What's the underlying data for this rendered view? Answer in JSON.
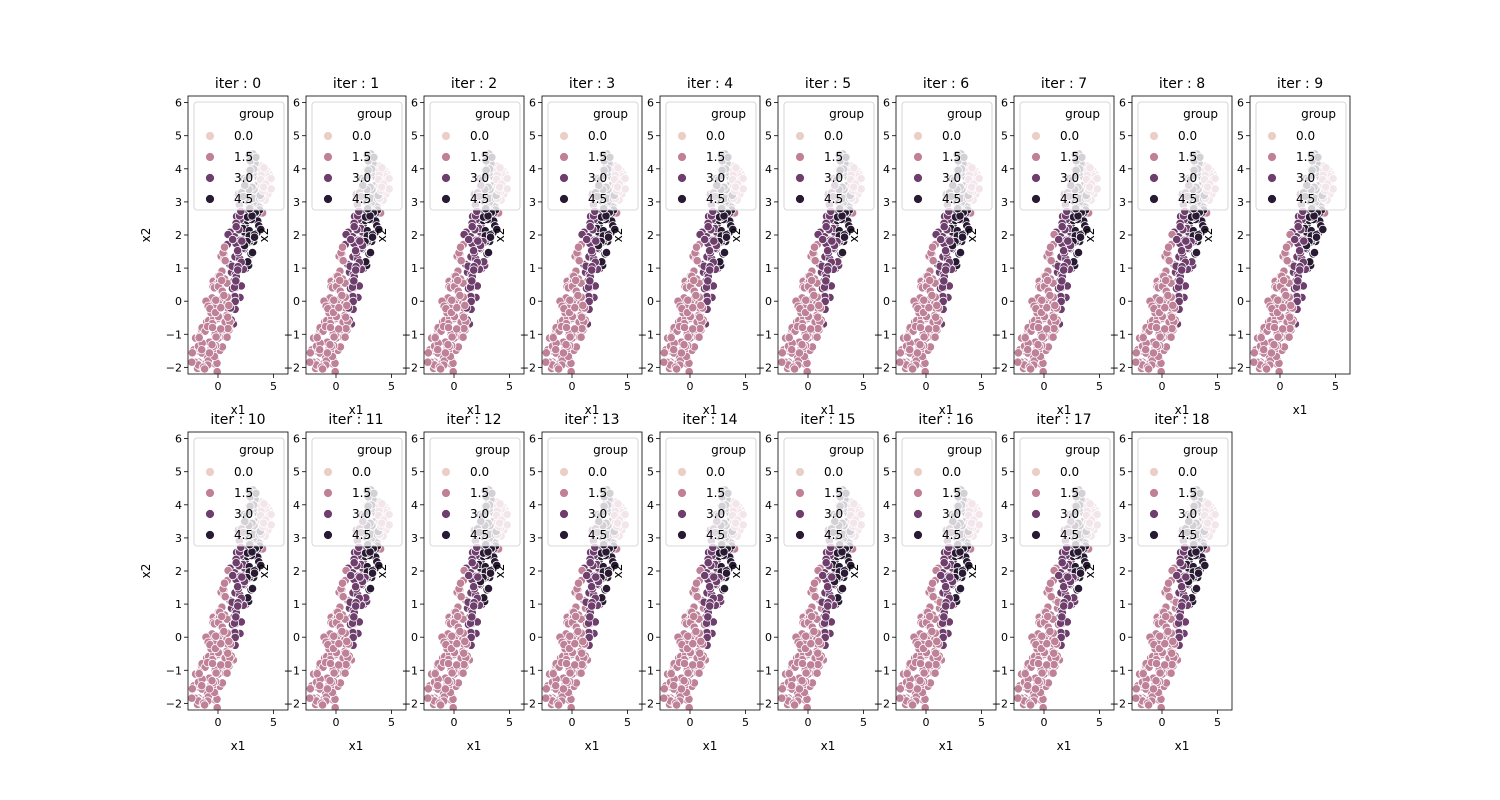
{
  "figure": {
    "xlabel": "x1",
    "ylabel": "x2",
    "legend_title": "group",
    "legend_location": "upper-right",
    "legend_entries": [
      "0.0",
      "1.5",
      "3.0",
      "4.5"
    ],
    "legend_colors": [
      "#eacfc6",
      "#bf8197",
      "#6e3e6c",
      "#281a32"
    ],
    "marker_edge_color": "#ffffff"
  },
  "chart_data": {
    "type": "scatter",
    "layout": "small-multiples",
    "rows": 2,
    "cols": 10,
    "x_ticks": [
      0,
      5
    ],
    "y_ticks": [
      -2,
      -1,
      0,
      1,
      2,
      3,
      4,
      5,
      6
    ],
    "xlim": [
      -2.7,
      6.3
    ],
    "ylim": [
      -2.2,
      6.2
    ],
    "grid": false,
    "groups": [
      "0.0",
      "1.5",
      "3.0",
      "4.5"
    ],
    "panels": [
      {
        "title": "iter : 0"
      },
      {
        "title": "iter : 1"
      },
      {
        "title": "iter : 2"
      },
      {
        "title": "iter : 3"
      },
      {
        "title": "iter : 4"
      },
      {
        "title": "iter : 5"
      },
      {
        "title": "iter : 6"
      },
      {
        "title": "iter : 7"
      },
      {
        "title": "iter : 8"
      },
      {
        "title": "iter : 9"
      },
      {
        "title": "iter : 10"
      },
      {
        "title": "iter : 11"
      },
      {
        "title": "iter : 12"
      },
      {
        "title": "iter : 13"
      },
      {
        "title": "iter : 14"
      },
      {
        "title": "iter : 15"
      },
      {
        "title": "iter : 16"
      },
      {
        "title": "iter : 17"
      },
      {
        "title": "iter : 18"
      }
    ]
  }
}
